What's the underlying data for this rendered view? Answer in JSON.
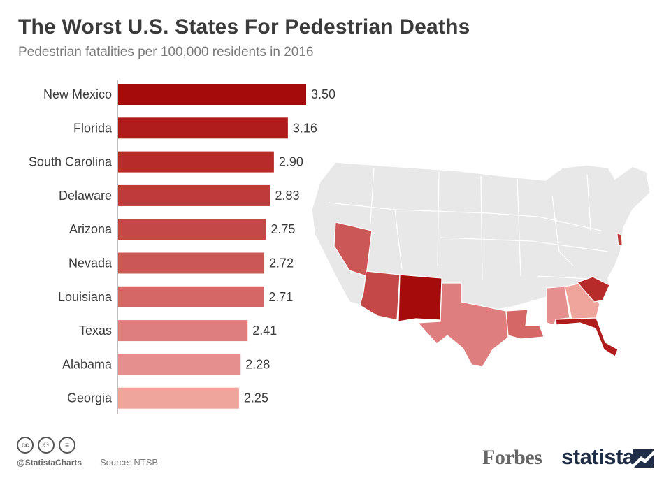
{
  "header": {
    "title": "The Worst U.S. States For Pedestrian Deaths",
    "subtitle": "Pedestrian fatalities per 100,000 residents in 2016"
  },
  "chart_data": {
    "type": "bar",
    "orientation": "horizontal",
    "title": "The Worst U.S. States For Pedestrian Deaths",
    "subtitle": "Pedestrian fatalities per 100,000 residents in 2016",
    "xlabel": "",
    "ylabel": "",
    "xlim": [
      0,
      3.5
    ],
    "grid": false,
    "categories": [
      "New Mexico",
      "Florida",
      "South Carolina",
      "Delaware",
      "Arizona",
      "Nevada",
      "Louisiana",
      "Texas",
      "Alabama",
      "Georgia"
    ],
    "values": [
      3.5,
      3.16,
      2.9,
      2.83,
      2.75,
      2.72,
      2.71,
      2.41,
      2.28,
      2.25
    ],
    "value_labels": [
      "3.50",
      "3.16",
      "2.90",
      "2.83",
      "2.75",
      "2.72",
      "2.71",
      "2.41",
      "2.28",
      "2.25"
    ],
    "colors": [
      "#a50b0b",
      "#b01c1c",
      "#b82b2b",
      "#bf3a3a",
      "#c54848",
      "#cc5757",
      "#d56767",
      "#de7e7e",
      "#e68f8f",
      "#efa59b"
    ]
  },
  "map": {
    "base_color": "#e8e8e8",
    "border_color": "#ffffff"
  },
  "footer": {
    "icons": [
      "cc-icon",
      "attribution-icon",
      "no-derivatives-icon"
    ],
    "icon_glyphs": [
      "cc",
      "⚇",
      "="
    ],
    "handle": "@StatistaCharts",
    "source": "Source: NTSB",
    "forbes": "Forbes",
    "statista": "statista"
  }
}
